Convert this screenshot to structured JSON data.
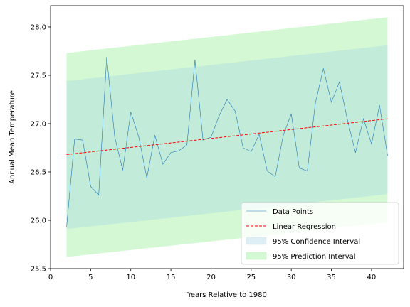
{
  "chart_data": {
    "type": "line",
    "title": "",
    "xlabel": "Years Relative to 1980",
    "ylabel": "Annual Mean Temperature",
    "xlim": [
      0,
      44
    ],
    "ylim": [
      25.5,
      28.22
    ],
    "xticks": [
      0,
      5,
      10,
      15,
      20,
      25,
      30,
      35,
      40
    ],
    "yticks": [
      25.5,
      26.0,
      26.5,
      27.0,
      27.5,
      28.0
    ],
    "grid": false,
    "legend_position": "lower-right",
    "series": [
      {
        "name": "Data Points",
        "style": "line",
        "color": "#1f77b4",
        "x": [
          2,
          3,
          4,
          5,
          6,
          7,
          8,
          9,
          10,
          11,
          12,
          13,
          14,
          15,
          16,
          17,
          18,
          19,
          20,
          21,
          22,
          23,
          24,
          25,
          26,
          27,
          28,
          29,
          30,
          31,
          32,
          33,
          34,
          35,
          36,
          37,
          38,
          39,
          40,
          41,
          42
        ],
        "y": [
          25.93,
          26.84,
          26.83,
          26.35,
          26.26,
          27.69,
          26.86,
          26.52,
          27.12,
          26.86,
          26.44,
          26.88,
          26.58,
          26.7,
          26.72,
          26.78,
          27.66,
          26.83,
          26.86,
          27.08,
          27.25,
          27.13,
          26.75,
          26.71,
          26.89,
          26.51,
          26.45,
          26.88,
          27.1,
          26.54,
          26.51,
          27.21,
          27.57,
          27.22,
          27.43,
          27.04,
          26.7,
          27.05,
          26.79,
          27.19,
          26.67
        ]
      },
      {
        "name": "Linear Regression",
        "style": "dashed-line",
        "color": "#ff0000",
        "x": [
          2,
          42
        ],
        "y": [
          26.68,
          27.05
        ]
      },
      {
        "name": "95% Confidence Interval",
        "style": "band",
        "color": "#add8e6",
        "x": [
          2,
          42
        ],
        "lower": [
          25.91,
          26.27
        ],
        "upper": [
          27.44,
          27.81
        ]
      },
      {
        "name": "95% Prediction Interval",
        "style": "band",
        "color": "#90ee90",
        "x": [
          2,
          42
        ],
        "lower": [
          25.62,
          25.98
        ],
        "upper": [
          27.73,
          28.1
        ]
      }
    ]
  }
}
